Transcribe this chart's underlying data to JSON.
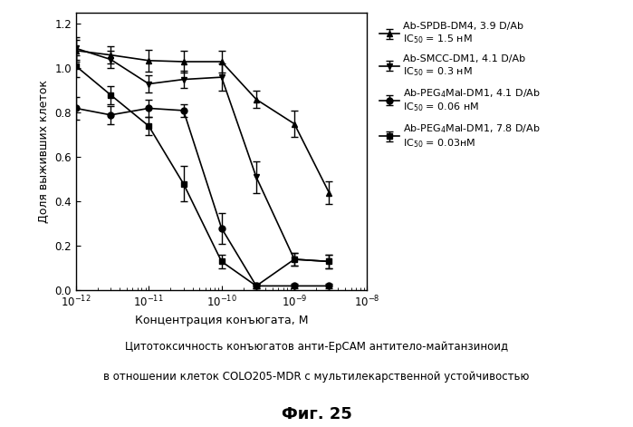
{
  "title_line1": "Цитотоксичность конъюгатов анти-EpCAM антитело-майтанзиноид",
  "title_line2": "в отношении клеток COLO205-MDR с мультилекарственной устойчивостью",
  "fig_label": "Фиг. 25",
  "xlabel": "Концентрация конъюгата, М",
  "ylabel": "Доля выживших клеток",
  "xlim_log": [
    -12,
    -8
  ],
  "ylim": [
    0.0,
    1.25
  ],
  "yticks": [
    0.0,
    0.2,
    0.4,
    0.6,
    0.8,
    1.0,
    1.2
  ],
  "series": [
    {
      "label_line1": "Ab-SPDB-DM4, 3.9 D/Ab",
      "label_line2": "IC$_{50}$ = 1.5 нМ",
      "marker": "^",
      "linestyle": "-",
      "x": [
        1e-12,
        3e-12,
        1e-11,
        3e-11,
        1e-10,
        3e-10,
        1e-09,
        3e-09
      ],
      "y": [
        1.08,
        1.06,
        1.035,
        1.03,
        1.03,
        0.86,
        0.75,
        0.44
      ],
      "yerr": [
        0.05,
        0.04,
        0.05,
        0.05,
        0.05,
        0.04,
        0.06,
        0.05
      ]
    },
    {
      "label_line1": "Ab-SMCC-DM1, 4.1 D/Ab",
      "label_line2": "IC$_{50}$ = 0.3 нМ",
      "marker": "v",
      "linestyle": "-",
      "x": [
        1e-12,
        3e-12,
        1e-11,
        3e-11,
        1e-10,
        3e-10,
        1e-09,
        3e-09
      ],
      "y": [
        1.09,
        1.04,
        0.93,
        0.95,
        0.96,
        0.51,
        0.14,
        0.13
      ],
      "yerr": [
        0.05,
        0.04,
        0.04,
        0.04,
        0.06,
        0.07,
        0.03,
        0.03
      ]
    },
    {
      "label_line1": "Ab-PEG$_4$Mal-DM1, 4.1 D/Ab",
      "label_line2": "IC$_{50}$ = 0.06 нМ",
      "marker": "o",
      "linestyle": "-",
      "x": [
        1e-12,
        3e-12,
        1e-11,
        3e-11,
        1e-10,
        3e-10,
        1e-09,
        3e-09
      ],
      "y": [
        0.82,
        0.79,
        0.82,
        0.81,
        0.28,
        0.02,
        0.02,
        0.02
      ],
      "yerr": [
        0.05,
        0.04,
        0.04,
        0.03,
        0.07,
        0.01,
        0.01,
        0.01
      ]
    },
    {
      "label_line1": "Ab-PEG$_4$Mal-DM1, 7.8 D/Ab",
      "label_line2": "IC$_{50}$ = 0.03нМ",
      "marker": "s",
      "linestyle": "-",
      "x": [
        1e-12,
        3e-12,
        1e-11,
        3e-11,
        1e-10,
        3e-10,
        1e-09,
        3e-09
      ],
      "y": [
        1.01,
        0.88,
        0.74,
        0.48,
        0.13,
        0.02,
        0.14,
        0.13
      ],
      "yerr": [
        0.05,
        0.04,
        0.04,
        0.08,
        0.03,
        0.01,
        0.03,
        0.03
      ]
    }
  ],
  "background_color": "#ffffff",
  "plot_bg_color": "#ffffff"
}
